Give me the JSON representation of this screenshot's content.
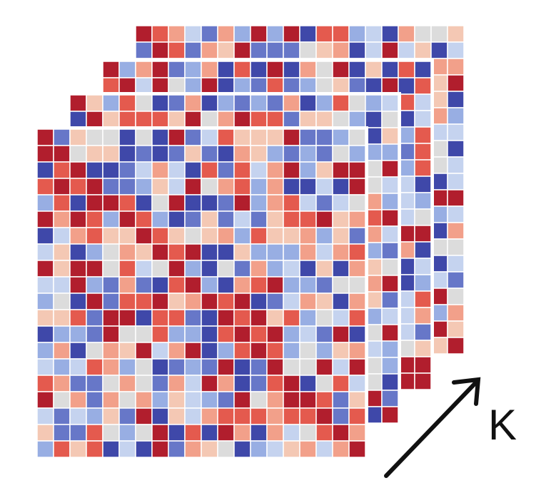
{
  "diagram": {
    "type": "stacked-matrix-heatmaps",
    "layers_shown": 4,
    "grid_size": 20,
    "colormap": "coolwarm",
    "palette": [
      "#3f48a9",
      "#6777c8",
      "#98aee3",
      "#c5d3ef",
      "#dcdcdc",
      "#f4c8b4",
      "#f2a08a",
      "#e45a4e",
      "#b11e2d"
    ],
    "cell_divider_color": "#ffffff"
  },
  "arrow": {
    "label": "K",
    "color": "#111111"
  }
}
